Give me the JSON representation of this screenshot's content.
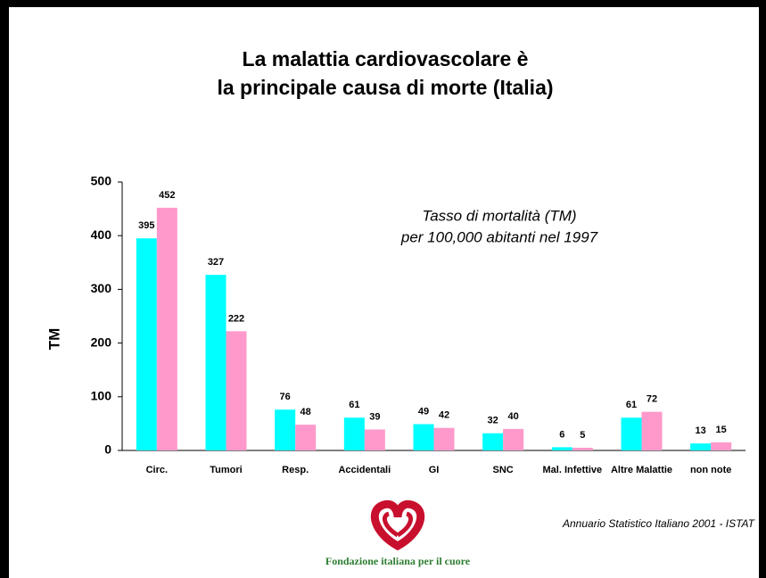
{
  "chart_data": {
    "type": "bar",
    "title": [
      "La malattia cardiovascolare è",
      "la principale causa di morte (Italia)"
    ],
    "ylabel": "TM",
    "annotation": [
      "Tasso di mortalità (TM)",
      "per 100,000 abitanti nel 1997"
    ],
    "source": "Annuario Statistico Italiano 2001 - ISTAT",
    "logo_text": "Fondazione italiana per il cuore",
    "categories": [
      "Circ.",
      "Tumori",
      "Resp.",
      "Accidentali",
      "GI",
      "SNC",
      "Mal. Infettive",
      "Altre Malattie",
      "non note"
    ],
    "series": [
      {
        "color": "#00ffff",
        "values": [
          395,
          327,
          76,
          61,
          49,
          32,
          6,
          61,
          13
        ]
      },
      {
        "color": "#ff99cc",
        "values": [
          452,
          222,
          48,
          39,
          42,
          40,
          5,
          72,
          15
        ]
      }
    ],
    "ylim": [
      0,
      500
    ],
    "yticks": [
      0,
      100,
      200,
      300,
      400,
      500
    ]
  }
}
